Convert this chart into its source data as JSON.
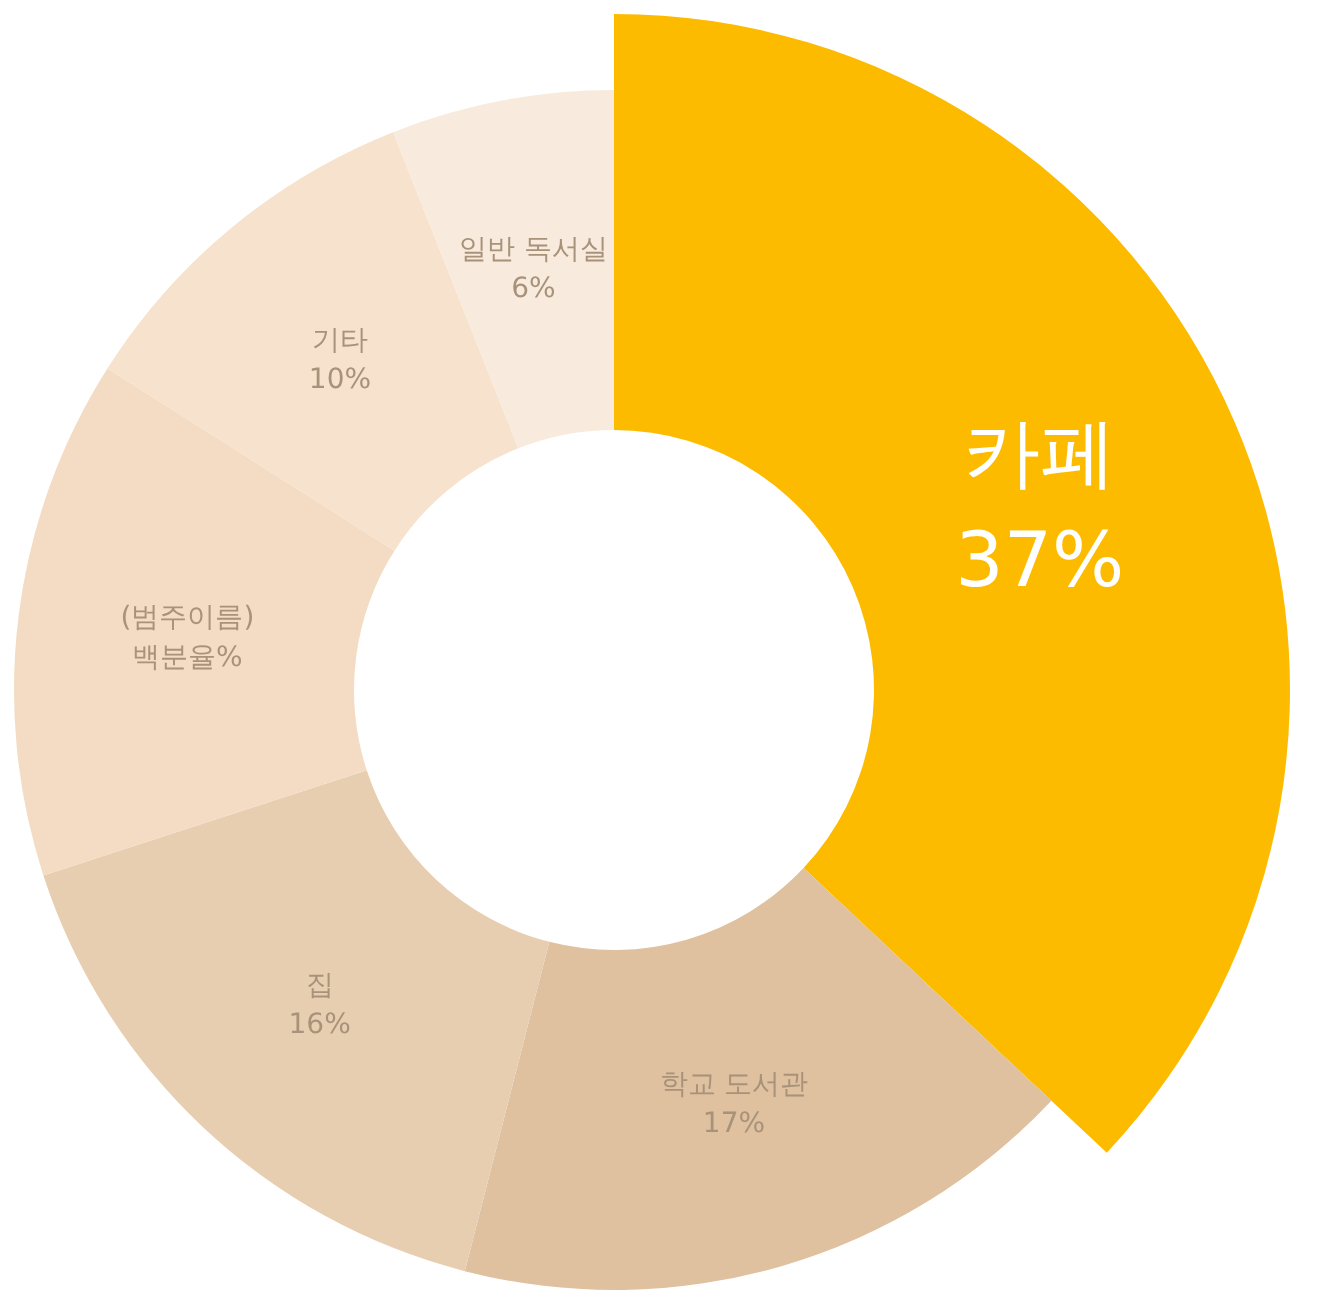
{
  "chart_data": {
    "type": "donut",
    "categories": [
      "카페",
      "학교 도서관",
      "집",
      "(범주이름)",
      "기타",
      "일반 독서실"
    ],
    "values": [
      37,
      17,
      16,
      14,
      10,
      6
    ],
    "value_labels": [
      "37%",
      "17%",
      "16%",
      "백분율%",
      "10%",
      "6%"
    ],
    "colors": [
      "#fdbb00",
      "#dfc09f",
      "#e8ceb1",
      "#f3dcc3",
      "#f6e2cd",
      "#f8ebdd"
    ]
  }
}
